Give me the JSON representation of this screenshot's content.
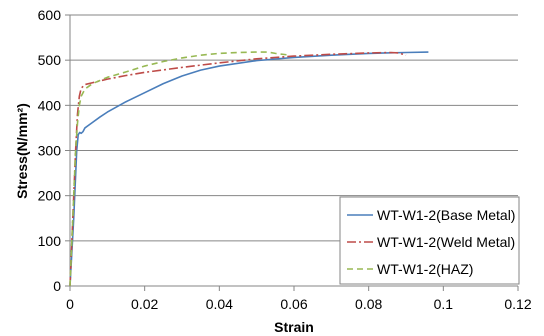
{
  "chart_data": {
    "type": "line",
    "xlabel": "Strain",
    "ylabel": "Stress(N/mm²)",
    "xlim": [
      0,
      0.12
    ],
    "ylim": [
      0,
      600
    ],
    "x_ticks": [
      "0",
      "0.02",
      "0.04",
      "0.06",
      "0.08",
      "0.1",
      "0.12"
    ],
    "y_ticks": [
      "0",
      "100",
      "200",
      "300",
      "400",
      "500",
      "600"
    ],
    "grid": "horizontal",
    "legend_position": "bottom-right",
    "series": [
      {
        "name": "WT-W1-2(Base Metal)",
        "color": "#4a7ebb",
        "dash": "solid",
        "points": [
          [
            0,
            0
          ],
          [
            0.001,
            150
          ],
          [
            0.0018,
            300
          ],
          [
            0.0022,
            335
          ],
          [
            0.0026,
            340
          ],
          [
            0.003,
            338
          ],
          [
            0.0035,
            342
          ],
          [
            0.004,
            350
          ],
          [
            0.006,
            362
          ],
          [
            0.008,
            374
          ],
          [
            0.01,
            385
          ],
          [
            0.015,
            408
          ],
          [
            0.02,
            428
          ],
          [
            0.025,
            448
          ],
          [
            0.03,
            465
          ],
          [
            0.035,
            478
          ],
          [
            0.04,
            487
          ],
          [
            0.05,
            499
          ],
          [
            0.06,
            506
          ],
          [
            0.07,
            511
          ],
          [
            0.08,
            515
          ],
          [
            0.09,
            517
          ],
          [
            0.096,
            518
          ]
        ]
      },
      {
        "name": "WT-W1-2(Weld Metal)",
        "color": "#be4b48",
        "dash": "dashdot",
        "points": [
          [
            0,
            0
          ],
          [
            0.0015,
            300
          ],
          [
            0.002,
            380
          ],
          [
            0.0025,
            420
          ],
          [
            0.003,
            438
          ],
          [
            0.004,
            446
          ],
          [
            0.006,
            450
          ],
          [
            0.01,
            458
          ],
          [
            0.015,
            466
          ],
          [
            0.02,
            473
          ],
          [
            0.03,
            484
          ],
          [
            0.04,
            494
          ],
          [
            0.05,
            503
          ],
          [
            0.06,
            509
          ],
          [
            0.07,
            513
          ],
          [
            0.08,
            516
          ],
          [
            0.086,
            517
          ],
          [
            0.088,
            516
          ],
          [
            0.09,
            511
          ]
        ]
      },
      {
        "name": "WT-W1-2(HAZ)",
        "color": "#98b954",
        "dash": "dashed",
        "points": [
          [
            0,
            0
          ],
          [
            0.0015,
            300
          ],
          [
            0.002,
            360
          ],
          [
            0.0025,
            400
          ],
          [
            0.003,
            420
          ],
          [
            0.004,
            436
          ],
          [
            0.006,
            448
          ],
          [
            0.01,
            462
          ],
          [
            0.015,
            474
          ],
          [
            0.02,
            487
          ],
          [
            0.025,
            497
          ],
          [
            0.03,
            505
          ],
          [
            0.035,
            511
          ],
          [
            0.04,
            515
          ],
          [
            0.045,
            517
          ],
          [
            0.05,
            518
          ],
          [
            0.053,
            518
          ],
          [
            0.055,
            515
          ],
          [
            0.058,
            512
          ]
        ]
      }
    ]
  }
}
